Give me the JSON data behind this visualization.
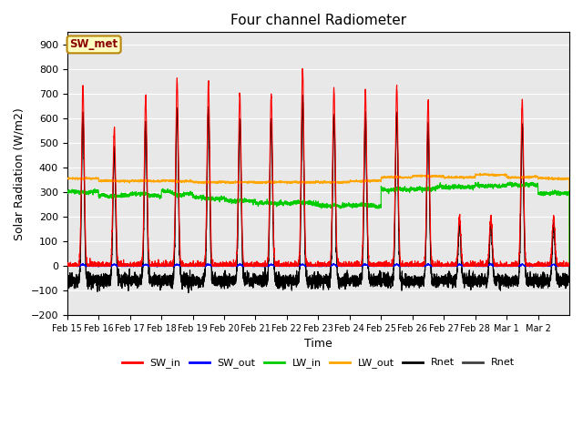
{
  "title": "Four channel Radiometer",
  "xlabel": "Time",
  "ylabel": "Solar Radiation (W/m2)",
  "ylim": [
    -200,
    950
  ],
  "yticks": [
    -200,
    -100,
    0,
    100,
    200,
    300,
    400,
    500,
    600,
    700,
    800,
    900
  ],
  "annotation_text": "SW_met",
  "annotation_color": "#8B0000",
  "annotation_bg": "#FFFFC0",
  "annotation_border": "#B8860B",
  "background_color": "#E8E8E8",
  "colors": {
    "SW_in": "#FF0000",
    "SW_out": "#0000FF",
    "LW_in": "#00CC00",
    "LW_out": "#FFA500",
    "Rnet1": "#000000",
    "Rnet2": "#404040"
  },
  "xtick_labels": [
    "Feb 15",
    "Feb 16",
    "Feb 17",
    "Feb 18",
    "Feb 19",
    "Feb 20",
    "Feb 21",
    "Feb 22",
    "Feb 23",
    "Feb 24",
    "Feb 25",
    "Feb 26",
    "Feb 27",
    "Feb 28",
    "Mar 1",
    "Mar 2"
  ],
  "legend_labels": [
    "SW_in",
    "SW_out",
    "LW_in",
    "LW_out",
    "Rnet",
    "Rnet"
  ],
  "sw_in_peaks": [
    730,
    560,
    690,
    760,
    750,
    700,
    700,
    800,
    720,
    720,
    730,
    670,
    200,
    200,
    670,
    200
  ],
  "lw_in_base": [
    300,
    285,
    290,
    295,
    275,
    265,
    255,
    255,
    245,
    245,
    310,
    315,
    320,
    325,
    330,
    295
  ],
  "lw_out_base": [
    355,
    345,
    345,
    345,
    340,
    340,
    340,
    340,
    340,
    345,
    360,
    365,
    360,
    370,
    360,
    355
  ]
}
